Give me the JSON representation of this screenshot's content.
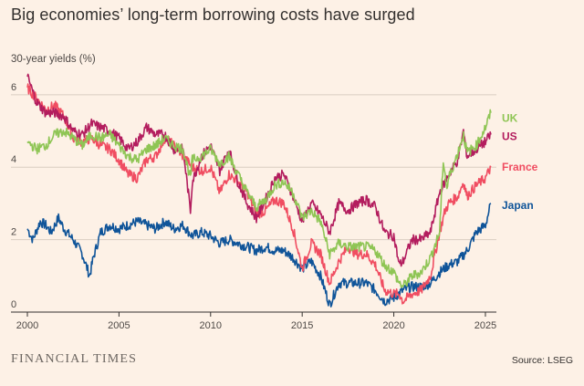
{
  "title": "Big economies’ long-term borrowing costs have surged",
  "brand": "FINANCIAL TIMES",
  "source": "Source: LSEG",
  "chart_data": {
    "type": "line",
    "title": "Big economies’ long-term borrowing costs have surged",
    "subtitle": "30-year yields (%)",
    "xlabel": "",
    "ylabel": "30-year yields (%)",
    "xlim": [
      2000,
      2025.6
    ],
    "ylim": [
      0,
      7
    ],
    "xticks": [
      2000,
      2005,
      2010,
      2015,
      2020,
      2025
    ],
    "yticks": [
      0,
      2,
      4,
      6
    ],
    "grid": true,
    "legend": "direct labels at line ends",
    "series": [
      {
        "name": "UK",
        "color": "#8fc555",
        "points": [
          [
            2000,
            4.7
          ],
          [
            2000.5,
            4.5
          ],
          [
            2001,
            4.6
          ],
          [
            2001.5,
            4.9
          ],
          [
            2002,
            5.0
          ],
          [
            2002.5,
            4.8
          ],
          [
            2003,
            4.6
          ],
          [
            2003.5,
            4.9
          ],
          [
            2004,
            4.8
          ],
          [
            2004.5,
            4.9
          ],
          [
            2005,
            4.6
          ],
          [
            2005.5,
            4.3
          ],
          [
            2006,
            4.2
          ],
          [
            2006.5,
            4.5
          ],
          [
            2007,
            4.6
          ],
          [
            2007.5,
            4.8
          ],
          [
            2008,
            4.6
          ],
          [
            2008.5,
            4.5
          ],
          [
            2008.9,
            3.7
          ],
          [
            2009,
            4.2
          ],
          [
            2009.5,
            4.3
          ],
          [
            2010,
            4.5
          ],
          [
            2010.5,
            4.1
          ],
          [
            2011,
            4.3
          ],
          [
            2011.5,
            3.8
          ],
          [
            2012,
            3.3
          ],
          [
            2012.5,
            2.9
          ],
          [
            2013,
            3.1
          ],
          [
            2013.5,
            3.5
          ],
          [
            2014,
            3.6
          ],
          [
            2014.5,
            3.3
          ],
          [
            2015,
            2.6
          ],
          [
            2015.5,
            2.8
          ],
          [
            2016,
            2.5
          ],
          [
            2016.5,
            1.6
          ],
          [
            2017,
            1.9
          ],
          [
            2017.5,
            1.8
          ],
          [
            2018,
            1.8
          ],
          [
            2018.5,
            1.8
          ],
          [
            2019,
            1.7
          ],
          [
            2019.5,
            1.3
          ],
          [
            2020,
            1.1
          ],
          [
            2020.3,
            0.8
          ],
          [
            2020.5,
            0.7
          ],
          [
            2021,
            1.0
          ],
          [
            2021.5,
            1.1
          ],
          [
            2022,
            1.5
          ],
          [
            2022.5,
            2.2
          ],
          [
            2022.7,
            4.2
          ],
          [
            2022.9,
            3.4
          ],
          [
            2023,
            3.7
          ],
          [
            2023.5,
            4.4
          ],
          [
            2023.8,
            4.9
          ],
          [
            2024,
            4.4
          ],
          [
            2024.5,
            4.6
          ],
          [
            2025,
            5.1
          ],
          [
            2025.3,
            5.5
          ]
        ]
      },
      {
        "name": "US",
        "color": "#b31d5e",
        "points": [
          [
            2000,
            6.5
          ],
          [
            2000.5,
            5.8
          ],
          [
            2001,
            5.5
          ],
          [
            2001.5,
            5.5
          ],
          [
            2002,
            5.4
          ],
          [
            2002.5,
            5.0
          ],
          [
            2003,
            4.9
          ],
          [
            2003.5,
            5.2
          ],
          [
            2004,
            5.1
          ],
          [
            2004.5,
            5.0
          ],
          [
            2005,
            4.8
          ],
          [
            2005.5,
            4.5
          ],
          [
            2006,
            4.7
          ],
          [
            2006.5,
            5.1
          ],
          [
            2007,
            4.9
          ],
          [
            2007.5,
            4.9
          ],
          [
            2008,
            4.5
          ],
          [
            2008.5,
            4.5
          ],
          [
            2008.9,
            2.8
          ],
          [
            2009,
            3.6
          ],
          [
            2009.5,
            4.3
          ],
          [
            2010,
            4.6
          ],
          [
            2010.5,
            3.9
          ],
          [
            2011,
            4.5
          ],
          [
            2011.5,
            3.6
          ],
          [
            2012,
            3.0
          ],
          [
            2012.5,
            2.6
          ],
          [
            2013,
            3.1
          ],
          [
            2013.5,
            3.7
          ],
          [
            2014,
            3.8
          ],
          [
            2014.5,
            3.2
          ],
          [
            2015,
            2.5
          ],
          [
            2015.5,
            3.0
          ],
          [
            2016,
            2.7
          ],
          [
            2016.5,
            2.2
          ],
          [
            2017,
            3.0
          ],
          [
            2017.5,
            2.8
          ],
          [
            2018,
            3.0
          ],
          [
            2018.5,
            3.1
          ],
          [
            2019,
            2.9
          ],
          [
            2019.5,
            2.2
          ],
          [
            2020,
            2.1
          ],
          [
            2020.3,
            1.3
          ],
          [
            2020.5,
            1.4
          ],
          [
            2021,
            2.0
          ],
          [
            2021.5,
            2.0
          ],
          [
            2022,
            2.2
          ],
          [
            2022.5,
            3.3
          ],
          [
            2022.8,
            3.6
          ],
          [
            2023,
            3.8
          ],
          [
            2023.5,
            4.2
          ],
          [
            2023.8,
            5.0
          ],
          [
            2024,
            4.3
          ],
          [
            2024.5,
            4.5
          ],
          [
            2025,
            4.7
          ],
          [
            2025.3,
            4.9
          ]
        ]
      },
      {
        "name": "France",
        "color": "#f04d61",
        "points": [
          [
            2000,
            6.2
          ],
          [
            2000.5,
            5.9
          ],
          [
            2001,
            5.6
          ],
          [
            2001.5,
            5.7
          ],
          [
            2002,
            5.4
          ],
          [
            2002.5,
            4.8
          ],
          [
            2003,
            4.7
          ],
          [
            2003.5,
            4.8
          ],
          [
            2004,
            4.6
          ],
          [
            2004.5,
            4.5
          ],
          [
            2005,
            4.2
          ],
          [
            2005.5,
            3.8
          ],
          [
            2006,
            3.7
          ],
          [
            2006.5,
            4.2
          ],
          [
            2007,
            4.3
          ],
          [
            2007.5,
            4.8
          ],
          [
            2008,
            4.6
          ],
          [
            2008.5,
            4.3
          ],
          [
            2009,
            4.0
          ],
          [
            2009.5,
            3.9
          ],
          [
            2010,
            4.0
          ],
          [
            2010.5,
            3.3
          ],
          [
            2011,
            3.8
          ],
          [
            2011.5,
            3.6
          ],
          [
            2012,
            3.3
          ],
          [
            2012.5,
            2.7
          ],
          [
            2013,
            2.8
          ],
          [
            2013.5,
            3.1
          ],
          [
            2014,
            3.0
          ],
          [
            2014.5,
            2.3
          ],
          [
            2015,
            1.2
          ],
          [
            2015.5,
            1.9
          ],
          [
            2016,
            1.6
          ],
          [
            2016.5,
            0.8
          ],
          [
            2017,
            1.4
          ],
          [
            2017.5,
            1.8
          ],
          [
            2018,
            1.6
          ],
          [
            2018.5,
            1.6
          ],
          [
            2019,
            1.3
          ],
          [
            2019.5,
            0.6
          ],
          [
            2020,
            0.5
          ],
          [
            2020.3,
            0.5
          ],
          [
            2020.5,
            0.3
          ],
          [
            2021,
            0.5
          ],
          [
            2021.5,
            0.6
          ],
          [
            2022,
            1.0
          ],
          [
            2022.5,
            2.2
          ],
          [
            2022.8,
            2.8
          ],
          [
            2023,
            3.0
          ],
          [
            2023.5,
            3.2
          ],
          [
            2023.8,
            3.6
          ],
          [
            2024,
            3.2
          ],
          [
            2024.5,
            3.5
          ],
          [
            2025,
            3.7
          ],
          [
            2025.3,
            4.0
          ]
        ]
      },
      {
        "name": "Japan",
        "color": "#0f5499",
        "points": [
          [
            2000,
            2.3
          ],
          [
            2000.3,
            2.0
          ],
          [
            2000.7,
            2.5
          ],
          [
            2001,
            2.4
          ],
          [
            2001.3,
            2.2
          ],
          [
            2001.7,
            2.6
          ],
          [
            2002,
            2.3
          ],
          [
            2002.5,
            2.0
          ],
          [
            2003,
            1.6
          ],
          [
            2003.4,
            1.0
          ],
          [
            2003.6,
            1.5
          ],
          [
            2004,
            2.2
          ],
          [
            2004.5,
            2.4
          ],
          [
            2005,
            2.3
          ],
          [
            2005.5,
            2.4
          ],
          [
            2006,
            2.5
          ],
          [
            2006.5,
            2.4
          ],
          [
            2007,
            2.3
          ],
          [
            2007.5,
            2.5
          ],
          [
            2008,
            2.3
          ],
          [
            2008.5,
            2.4
          ],
          [
            2009,
            2.1
          ],
          [
            2009.5,
            2.2
          ],
          [
            2010,
            2.1
          ],
          [
            2010.5,
            1.9
          ],
          [
            2011,
            2.0
          ],
          [
            2011.5,
            1.9
          ],
          [
            2012,
            1.8
          ],
          [
            2012.5,
            1.7
          ],
          [
            2013,
            1.8
          ],
          [
            2013.5,
            1.7
          ],
          [
            2014,
            1.7
          ],
          [
            2014.5,
            1.5
          ],
          [
            2015,
            1.2
          ],
          [
            2015.5,
            1.4
          ],
          [
            2016,
            1.0
          ],
          [
            2016.5,
            0.2
          ],
          [
            2017,
            0.8
          ],
          [
            2017.5,
            0.8
          ],
          [
            2018,
            0.8
          ],
          [
            2018.5,
            0.8
          ],
          [
            2019,
            0.6
          ],
          [
            2019.5,
            0.3
          ],
          [
            2020,
            0.4
          ],
          [
            2020.5,
            0.6
          ],
          [
            2021,
            0.7
          ],
          [
            2021.5,
            0.7
          ],
          [
            2022,
            0.8
          ],
          [
            2022.5,
            1.1
          ],
          [
            2023,
            1.3
          ],
          [
            2023.5,
            1.4
          ],
          [
            2024,
            1.7
          ],
          [
            2024.5,
            2.2
          ],
          [
            2025,
            2.4
          ],
          [
            2025.3,
            3.0
          ]
        ]
      }
    ]
  }
}
